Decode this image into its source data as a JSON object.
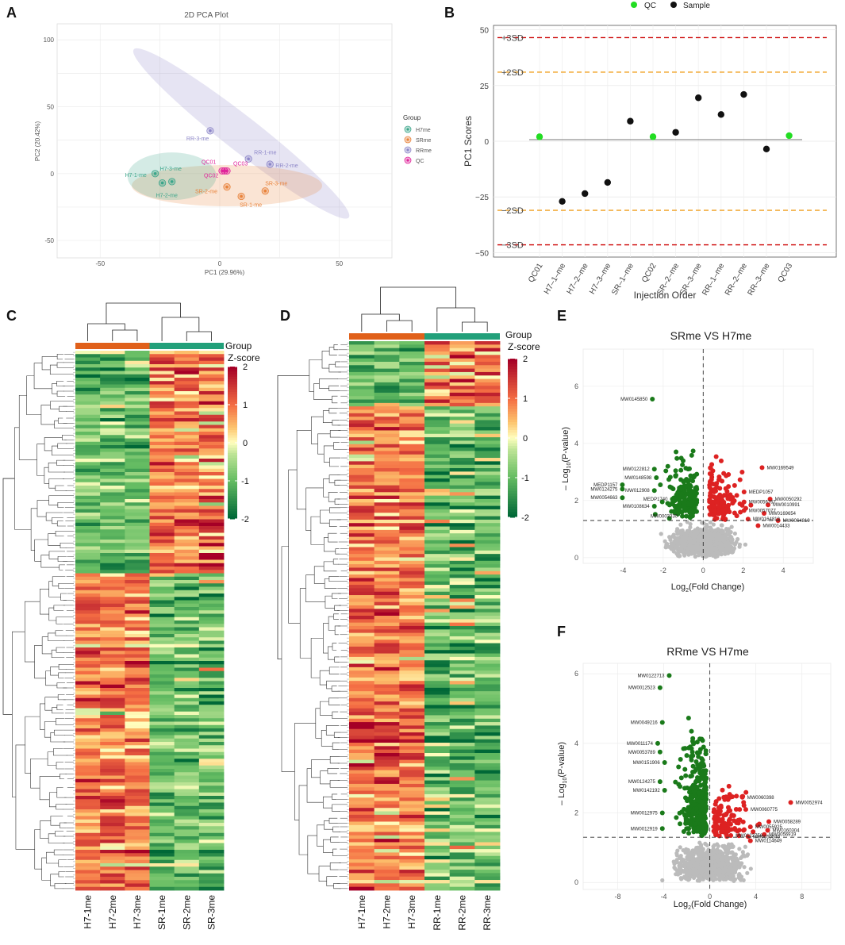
{
  "panels": {
    "A": "A",
    "B": "B",
    "C": "C",
    "D": "D",
    "E": "E",
    "F": "F"
  },
  "colors": {
    "H7me": "#3aa58a",
    "SRme": "#e8823a",
    "RRme": "#8c86c8",
    "QC": "#e0239a",
    "qc_point": "#22dd22",
    "sample_point": "#111111",
    "sd3": "#cc0000",
    "sd2": "#f0a020",
    "volcano_up": "#dd2222",
    "volcano_down": "#1a7a1a",
    "volcano_ns": "#bbbbbb",
    "heat_group1": "#e0601a",
    "heat_group2": "#22a07a"
  },
  "chart_data": [
    {
      "id": "pca",
      "type": "scatter",
      "title": "2D PCA Plot",
      "xlabel": "PC1 (29.96%)",
      "ylabel": "PC2 (20.42%)",
      "xlim": [
        -68,
        72
      ],
      "ylim": [
        -63,
        112
      ],
      "xticks": [
        "-50",
        "0",
        "50"
      ],
      "xtick_values": [
        -50,
        0,
        50
      ],
      "yticks": [
        "100",
        "50",
        "0",
        "-50"
      ],
      "ytick_values": [
        100,
        50,
        0,
        -50
      ],
      "legend_title": "Group",
      "legend": [
        "H7me",
        "SRme",
        "RRme",
        "QC"
      ],
      "points": [
        {
          "label": "H7-1-me",
          "group": "H7me",
          "x": -27,
          "y": 0
        },
        {
          "label": "H7-2-me",
          "group": "H7me",
          "x": -24,
          "y": -7
        },
        {
          "label": "H7-3-me",
          "group": "H7me",
          "x": -20,
          "y": -6
        },
        {
          "label": "SR-1-me",
          "group": "SRme",
          "x": 9,
          "y": -17
        },
        {
          "label": "SR-2-me",
          "group": "SRme",
          "x": 3,
          "y": -10
        },
        {
          "label": "SR-3-me",
          "group": "SRme",
          "x": 19,
          "y": -13
        },
        {
          "label": "RR-1-me",
          "group": "RRme",
          "x": 12,
          "y": 11
        },
        {
          "label": "RR-2-me",
          "group": "RRme",
          "x": 21,
          "y": 7
        },
        {
          "label": "RR-3-me",
          "group": "RRme",
          "x": -4,
          "y": 32
        },
        {
          "label": "QC01",
          "group": "QC",
          "x": 1,
          "y": 2
        },
        {
          "label": "QC02",
          "group": "QC",
          "x": 2,
          "y": 2
        },
        {
          "label": "QC03",
          "group": "QC",
          "x": 3,
          "y": 2
        }
      ]
    },
    {
      "id": "pc1-scores",
      "type": "scatter",
      "xlabel": "Injection Order",
      "ylabel": "PC1 Scores",
      "legend": [
        "QC",
        "Sample"
      ],
      "categories": [
        "QC01",
        "H7–1–me",
        "H7–2–me",
        "H7–3–me",
        "SR–1–me",
        "QC02",
        "SR–2–me",
        "SR–3–me",
        "RR–1–me",
        "RR–2–me",
        "RR–3–me",
        "QC03"
      ],
      "values": [
        2,
        -27,
        -23.5,
        -18.5,
        9,
        2,
        4,
        19.5,
        12,
        21,
        -3.5,
        2.5
      ],
      "point_types": [
        "QC",
        "Sample",
        "Sample",
        "Sample",
        "Sample",
        "QC",
        "Sample",
        "Sample",
        "Sample",
        "Sample",
        "Sample",
        "QC"
      ],
      "ylim": [
        -52,
        52
      ],
      "yticks": [
        "50",
        "25",
        "0",
        "−25",
        "−50"
      ],
      "ytick_values": [
        50,
        25,
        0,
        -25,
        -50
      ],
      "reference_lines": [
        {
          "label": "+3SD",
          "value": 46.5,
          "kind": "sd3"
        },
        {
          "label": "+2SD",
          "value": 31,
          "kind": "sd2"
        },
        {
          "label": "−2SD",
          "value": -31,
          "kind": "sd2"
        },
        {
          "label": "−3SD",
          "value": -46.5,
          "kind": "sd3"
        }
      ]
    },
    {
      "id": "heatmap-sr",
      "type": "heatmap",
      "columns": [
        "H7-1me",
        "H7-2me",
        "H7-3me",
        "SR-1me",
        "SR-2me",
        "SR-3me"
      ],
      "group_label": "Group",
      "scale_label": "Z-score",
      "scale_ticks": [
        "2",
        "1",
        "0",
        "-1",
        "-2"
      ],
      "scale_values": [
        2,
        1,
        0,
        -1,
        -2
      ],
      "split_fraction": 0.41
    },
    {
      "id": "heatmap-rr",
      "type": "heatmap",
      "columns": [
        "H7-1me",
        "H7-2me",
        "H7-3me",
        "RR-1me",
        "RR-2me",
        "RR-3me"
      ],
      "group_label": "Group",
      "scale_label": "Z-score",
      "scale_ticks": [
        "2",
        "1",
        "0",
        "-1",
        "-2"
      ],
      "scale_values": [
        2,
        1,
        0,
        -1,
        -2
      ],
      "split_fraction": 0.12
    },
    {
      "id": "volcano-sr",
      "type": "scatter",
      "title": "SRme VS H7me",
      "xlabel": "Log",
      "xlabel_sub": "2",
      "xlabel_tail": "(Fold Change)",
      "ylabel": "– Log",
      "ylabel_sub": "10",
      "ylabel_tail": "(P-value)",
      "xlim": [
        -6,
        5.5
      ],
      "ylim": [
        -0.2,
        7.3
      ],
      "xticks": [
        "-4",
        "-2",
        "0",
        "2",
        "4"
      ],
      "xtick_values": [
        -4,
        -2,
        0,
        2,
        4
      ],
      "yticks": [
        "0",
        "2",
        "4",
        "6"
      ],
      "ytick_values": [
        0,
        2,
        4,
        6
      ],
      "threshold_y": 1.3,
      "labels_down": [
        {
          "text": "MW0145850",
          "x": -2.7,
          "y": 5.55
        },
        {
          "text": "MW0122812",
          "x": -2.6,
          "y": 3.1
        },
        {
          "text": "MW0148598",
          "x": -2.5,
          "y": 2.8
        },
        {
          "text": "MEDP1157",
          "x": -4.2,
          "y": 2.55
        },
        {
          "text": "MW0124275",
          "x": -4.2,
          "y": 2.4
        },
        {
          "text": "MW0054663",
          "x": -4.2,
          "y": 2.1
        },
        {
          "text": "MW012908",
          "x": -2.6,
          "y": 2.35
        },
        {
          "text": "MEDP1740",
          "x": -1.7,
          "y": 2.05
        },
        {
          "text": "MW0108634",
          "x": -2.6,
          "y": 1.8
        },
        {
          "text": "MW0003330",
          "x": -1.2,
          "y": 1.45
        }
      ],
      "labels_up": [
        {
          "text": "MW0169549",
          "x": 3.1,
          "y": 3.15
        },
        {
          "text": "MEDP1057",
          "x": 2.2,
          "y": 2.3
        },
        {
          "text": "MW0050292",
          "x": 3.5,
          "y": 2.05
        },
        {
          "text": "MW0056767",
          "x": 2.2,
          "y": 1.95
        },
        {
          "text": "MW0010991",
          "x": 3.4,
          "y": 1.85
        },
        {
          "text": "MW0057077",
          "x": 2.2,
          "y": 1.65
        },
        {
          "text": "MW0169654",
          "x": 3.2,
          "y": 1.55
        },
        {
          "text": "MW0164819",
          "x": 2.4,
          "y": 1.35
        },
        {
          "text": "MW0064819",
          "x": 3.9,
          "y": 1.3
        },
        {
          "text": "MW0014433",
          "x": 2.9,
          "y": 1.12
        }
      ]
    },
    {
      "id": "volcano-rr",
      "type": "scatter",
      "title": "RRme VS H7me",
      "xlabel": "Log",
      "xlabel_sub": "2",
      "xlabel_tail": "(Fold Change)",
      "ylabel": "– Log",
      "ylabel_sub": "10",
      "ylabel_tail": "(P-value)",
      "xlim": [
        -11,
        10.5
      ],
      "ylim": [
        -0.2,
        6.3
      ],
      "xticks": [
        "-8",
        "-4",
        "0",
        "4",
        "8"
      ],
      "xtick_values": [
        -8,
        -4,
        0,
        4,
        8
      ],
      "yticks": [
        "0",
        "2",
        "4",
        "6"
      ],
      "ytick_values": [
        0,
        2,
        4,
        6
      ],
      "threshold_y": 1.3,
      "labels_down": [
        {
          "text": "MW0122713",
          "x": -3.8,
          "y": 5.95
        },
        {
          "text": "MW0012523",
          "x": -4.6,
          "y": 5.6
        },
        {
          "text": "MW0049216",
          "x": -4.4,
          "y": 4.6
        },
        {
          "text": "MW0011174",
          "x": -4.8,
          "y": 4.0
        },
        {
          "text": "MW0053789",
          "x": -4.6,
          "y": 3.75
        },
        {
          "text": "MW0151906",
          "x": -4.2,
          "y": 3.45
        },
        {
          "text": "MW0124275",
          "x": -4.6,
          "y": 2.9
        },
        {
          "text": "MW0142192",
          "x": -4.2,
          "y": 2.65
        },
        {
          "text": "MW0012975",
          "x": -4.4,
          "y": 2.0
        },
        {
          "text": "MW0012919",
          "x": -4.4,
          "y": 1.55
        }
      ],
      "labels_up": [
        {
          "text": "MW0060398",
          "x": 3.1,
          "y": 2.45
        },
        {
          "text": "MW0052974",
          "x": 7.3,
          "y": 2.3
        },
        {
          "text": "MW0060775",
          "x": 3.4,
          "y": 2.1
        },
        {
          "text": "MW0058289",
          "x": 5.4,
          "y": 1.75
        },
        {
          "text": "MW0055925",
          "x": 3.8,
          "y": 1.6
        },
        {
          "text": "MW0160304",
          "x": 5.3,
          "y": 1.5
        },
        {
          "text": "MW0122756",
          "x": 2.1,
          "y": 1.35
        },
        {
          "text": "MW0056919",
          "x": 5.0,
          "y": 1.38
        },
        {
          "text": "MW0050540",
          "x": 3.6,
          "y": 1.32
        },
        {
          "text": "MW0114649",
          "x": 3.8,
          "y": 1.2
        }
      ]
    }
  ]
}
